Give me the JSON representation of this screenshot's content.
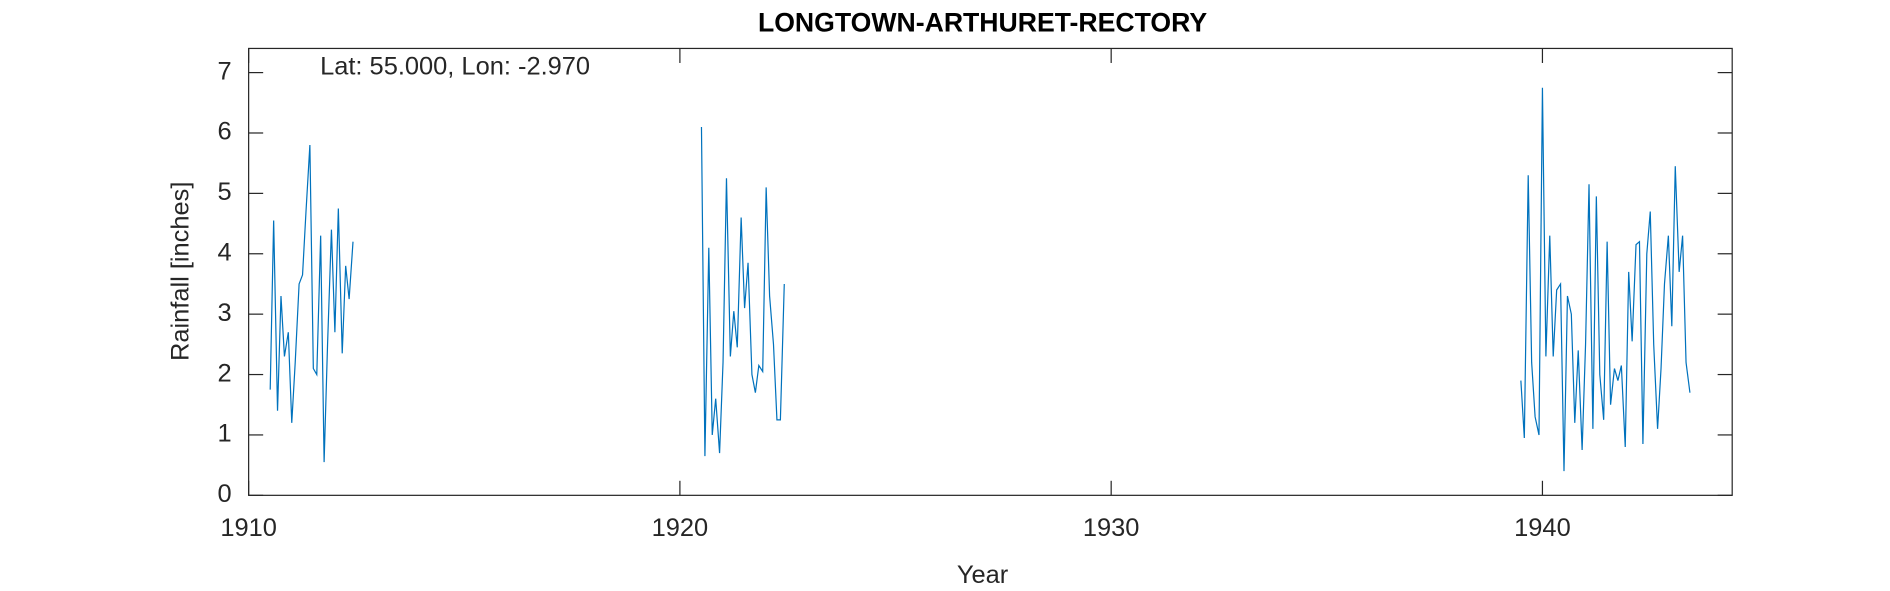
{
  "chart_data": {
    "type": "line",
    "title": "LONGTOWN-ARTHURET-RECTORY",
    "annotation": "Lat: 55.000, Lon: -2.970",
    "x_label": "Year",
    "y_label": "Rainfall [inches]",
    "xlim": [
      1910,
      1944.4
    ],
    "xticks": [
      1910,
      1920,
      1930,
      1940
    ],
    "ylim": [
      0,
      7.4
    ],
    "yticks": [
      0,
      1,
      2,
      3,
      4,
      5,
      6,
      7
    ],
    "x": [
      1910.5,
      1910.58,
      1910.67,
      1910.75,
      1910.83,
      1910.92,
      1911.0,
      1911.08,
      1911.17,
      1911.25,
      1911.33,
      1911.42,
      1911.5,
      1911.58,
      1911.67,
      1911.75,
      1911.83,
      1911.92,
      1912.0,
      1912.08,
      1912.17,
      1912.25,
      1912.33,
      1912.42,
      1916,
      1920.5,
      1920.58,
      1920.67,
      1920.75,
      1920.83,
      1920.92,
      1921.0,
      1921.08,
      1921.17,
      1921.25,
      1921.33,
      1921.42,
      1921.5,
      1921.58,
      1921.67,
      1921.75,
      1921.83,
      1921.92,
      1922.0,
      1922.08,
      1922.17,
      1922.25,
      1922.33,
      1922.42,
      1930,
      1939.5,
      1939.58,
      1939.67,
      1939.75,
      1939.83,
      1939.92,
      1940.0,
      1940.08,
      1940.17,
      1940.25,
      1940.33,
      1940.42,
      1940.5,
      1940.58,
      1940.67,
      1940.75,
      1940.83,
      1940.92,
      1941.0,
      1941.08,
      1941.17,
      1941.25,
      1941.33,
      1941.42,
      1941.5,
      1941.58,
      1941.67,
      1941.75,
      1941.83,
      1941.92,
      1942.0,
      1942.08,
      1942.17,
      1942.25,
      1942.33,
      1942.42,
      1942.5,
      1942.58,
      1942.67,
      1942.75,
      1942.83,
      1942.92,
      1943.0,
      1943.08,
      1943.17,
      1943.25,
      1943.33,
      1943.42
    ],
    "series": [
      {
        "color": "#0072bd",
        "values": [
          1.75,
          4.55,
          1.4,
          3.3,
          2.3,
          2.7,
          1.2,
          2.2,
          3.5,
          3.65,
          4.7,
          5.8,
          2.1,
          2.0,
          4.3,
          0.55,
          2.5,
          4.4,
          2.7,
          4.75,
          2.35,
          3.8,
          3.25,
          4.2,
          null,
          6.1,
          0.65,
          4.1,
          1.0,
          1.6,
          0.7,
          2.2,
          5.25,
          2.3,
          3.05,
          2.45,
          4.6,
          3.1,
          3.85,
          2.0,
          1.7,
          2.15,
          2.05,
          5.1,
          3.3,
          2.5,
          1.25,
          1.25,
          3.5,
          null,
          1.9,
          0.95,
          5.3,
          2.2,
          1.3,
          1.0,
          6.75,
          2.3,
          4.3,
          2.3,
          3.4,
          3.5,
          0.4,
          3.3,
          3.0,
          1.2,
          2.4,
          0.75,
          2.5,
          5.15,
          1.1,
          4.95,
          2.0,
          1.25,
          4.2,
          1.5,
          2.1,
          1.9,
          2.15,
          0.8,
          3.7,
          2.55,
          4.15,
          4.2,
          0.85,
          4.0,
          4.7,
          2.5,
          1.1,
          2.1,
          3.5,
          4.3,
          2.8,
          5.45,
          3.7,
          4.3,
          2.2,
          1.7
        ]
      }
    ]
  }
}
